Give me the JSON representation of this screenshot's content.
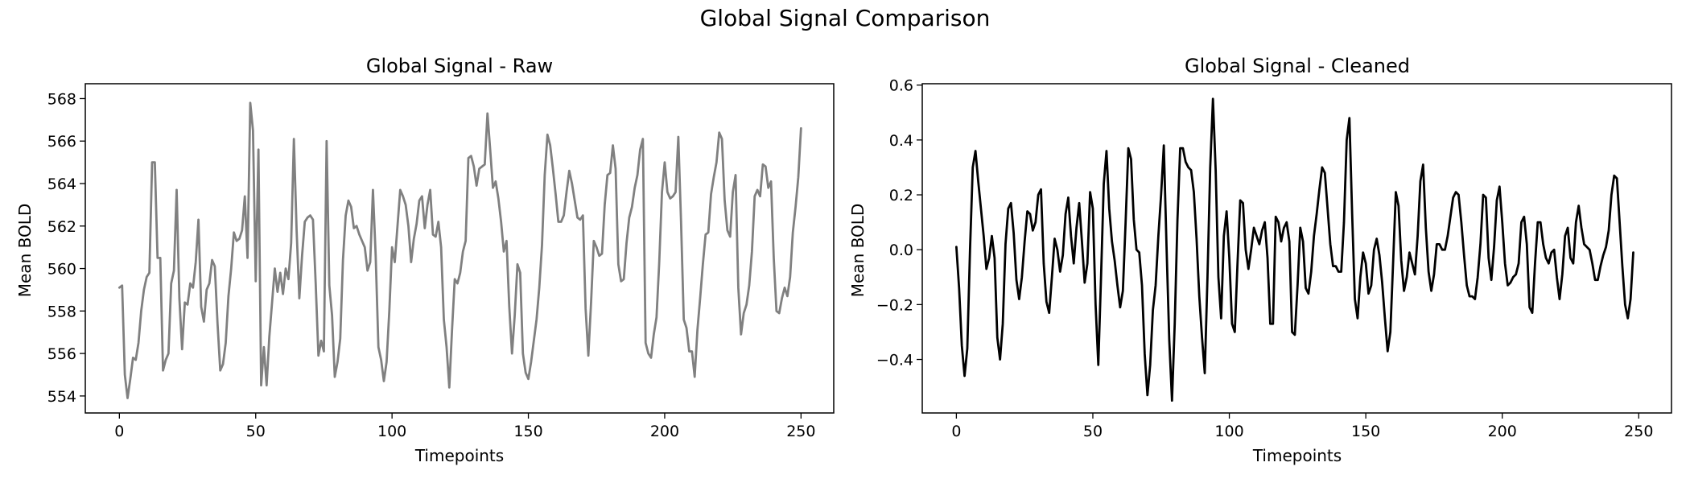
{
  "title": "Global Signal Comparison",
  "chart_data": [
    {
      "type": "line",
      "title": "Global Signal - Raw",
      "xlabel": "Timepoints",
      "ylabel": "Mean BOLD",
      "xlim": [
        -12.5,
        262
      ],
      "ylim": [
        553.2,
        568.7
      ],
      "xticks": [
        0,
        50,
        100,
        150,
        200,
        250
      ],
      "yticks": [
        554,
        556,
        558,
        560,
        562,
        564,
        566,
        568
      ],
      "ytick_labels": [
        "554",
        "556",
        "558",
        "560",
        "562",
        "564",
        "566",
        "568"
      ],
      "grid": false,
      "series": [
        {
          "color": "#808080",
          "x_start": 0,
          "x_step": 1,
          "values": [
            559.1,
            559.2,
            555.0,
            553.9,
            554.8,
            555.8,
            555.7,
            556.5,
            558.0,
            559.0,
            559.6,
            559.8,
            565.0,
            565.0,
            560.5,
            560.5,
            555.2,
            555.7,
            556.0,
            559.3,
            559.9,
            563.7,
            558.6,
            556.2,
            558.4,
            558.3,
            559.3,
            559.1,
            560.3,
            562.3,
            558.2,
            557.5,
            559.0,
            559.3,
            560.4,
            560.1,
            557.4,
            555.2,
            555.5,
            556.5,
            558.7,
            560.0,
            561.7,
            561.3,
            561.4,
            561.8,
            563.4,
            560.5,
            567.8,
            566.5,
            559.4,
            565.6,
            554.5,
            556.3,
            554.5,
            556.8,
            558.4,
            560.0,
            558.9,
            559.8,
            558.8,
            560.0,
            559.5,
            561.2,
            566.1,
            561.8,
            558.6,
            560.6,
            562.2,
            562.4,
            562.5,
            562.3,
            559.3,
            555.9,
            556.6,
            556.1,
            566.0,
            559.2,
            557.8,
            554.9,
            555.6,
            556.7,
            560.4,
            562.5,
            563.2,
            562.9,
            561.9,
            562.0,
            561.6,
            561.3,
            561.0,
            559.9,
            560.3,
            563.7,
            560.6,
            556.3,
            555.7,
            554.7,
            555.6,
            558.0,
            561.0,
            560.3,
            562.0,
            563.7,
            563.4,
            563.0,
            562.0,
            560.3,
            561.4,
            562.1,
            563.2,
            563.4,
            561.9,
            563.0,
            563.7,
            561.6,
            561.5,
            562.2,
            561.0,
            557.6,
            556.3,
            554.4,
            557.1,
            559.5,
            559.3,
            559.8,
            560.8,
            561.3,
            565.2,
            565.3,
            564.8,
            563.9,
            564.7,
            564.8,
            564.9,
            567.3,
            565.6,
            563.8,
            564.1,
            563.3,
            562.2,
            560.8,
            561.3,
            558.2,
            556.0,
            557.8,
            560.2,
            559.8,
            556.0,
            555.1,
            554.8,
            555.6,
            556.6,
            557.6,
            559.1,
            561.1,
            564.4,
            566.3,
            565.8,
            564.7,
            563.5,
            562.2,
            562.2,
            562.5,
            563.6,
            564.6,
            564.0,
            563.2,
            562.4,
            562.3,
            562.5,
            558.1,
            555.9,
            558.4,
            561.3,
            561.0,
            560.6,
            560.7,
            563.0,
            564.4,
            564.5,
            565.8,
            564.7,
            560.2,
            559.4,
            559.5,
            561.2,
            562.4,
            562.9,
            563.8,
            564.4,
            565.6,
            566.1,
            556.5,
            556.0,
            555.8,
            556.9,
            557.7,
            560.3,
            563.6,
            565.0,
            563.6,
            563.3,
            563.4,
            563.6,
            566.2,
            562.2,
            557.6,
            557.2,
            556.1,
            556.1,
            554.9,
            557.1,
            558.6,
            560.2,
            561.6,
            561.7,
            563.5,
            564.3,
            565.0,
            566.4,
            566.1,
            563.2,
            561.8,
            561.5,
            563.6,
            564.4,
            559.1,
            556.9,
            557.9,
            558.3,
            559.2,
            560.8,
            563.4,
            563.7,
            563.4,
            564.9,
            564.8,
            563.8,
            564.1,
            560.5,
            558.0,
            557.9,
            558.6,
            559.1,
            558.7,
            559.6,
            561.7,
            562.9,
            564.3,
            566.6
          ]
        }
      ]
    },
    {
      "type": "line",
      "title": "Global Signal - Cleaned",
      "xlabel": "Timepoints",
      "ylabel": "Mean BOLD",
      "xlim": [
        -12.5,
        262
      ],
      "ylim": [
        -0.595,
        0.605
      ],
      "xticks": [
        0,
        50,
        100,
        150,
        200,
        250
      ],
      "yticks": [
        -0.4,
        -0.2,
        0.0,
        0.2,
        0.4,
        0.6
      ],
      "ytick_labels": [
        "−0.4",
        "−0.2",
        "0.0",
        "0.2",
        "0.4",
        "0.6"
      ],
      "grid": false,
      "series": [
        {
          "color": "#000000",
          "x_start": 0,
          "x_step": 1,
          "values": [
            0.01,
            -0.14,
            -0.35,
            -0.46,
            -0.36,
            0.0,
            0.3,
            0.36,
            0.25,
            0.15,
            0.05,
            -0.07,
            -0.03,
            0.05,
            -0.03,
            -0.32,
            -0.4,
            -0.27,
            0.02,
            0.15,
            0.17,
            0.06,
            -0.11,
            -0.18,
            -0.1,
            0.03,
            0.14,
            0.13,
            0.07,
            0.1,
            0.2,
            0.22,
            -0.05,
            -0.19,
            -0.23,
            -0.1,
            0.04,
            0.0,
            -0.08,
            -0.02,
            0.13,
            0.19,
            0.05,
            -0.05,
            0.08,
            0.17,
            0.03,
            -0.12,
            -0.05,
            0.21,
            0.15,
            -0.2,
            -0.42,
            -0.1,
            0.24,
            0.36,
            0.15,
            0.03,
            -0.04,
            -0.13,
            -0.21,
            -0.15,
            0.1,
            0.37,
            0.33,
            0.11,
            0.0,
            -0.01,
            -0.13,
            -0.38,
            -0.53,
            -0.42,
            -0.22,
            -0.13,
            0.05,
            0.2,
            0.38,
            0.01,
            -0.33,
            -0.55,
            -0.27,
            0.11,
            0.37,
            0.37,
            0.32,
            0.3,
            0.29,
            0.21,
            0.04,
            -0.17,
            -0.32,
            -0.45,
            -0.1,
            0.3,
            0.55,
            0.29,
            -0.1,
            -0.25,
            0.05,
            0.14,
            -0.03,
            -0.27,
            -0.3,
            -0.05,
            0.18,
            0.17,
            0.0,
            -0.07,
            0.0,
            0.08,
            0.05,
            0.02,
            0.07,
            0.1,
            -0.03,
            -0.27,
            -0.27,
            0.12,
            0.1,
            0.03,
            0.08,
            0.1,
            0.03,
            -0.3,
            -0.31,
            -0.13,
            0.08,
            0.03,
            -0.14,
            -0.16,
            -0.08,
            0.05,
            0.13,
            0.22,
            0.3,
            0.28,
            0.15,
            0.02,
            -0.06,
            -0.06,
            -0.08,
            -0.08,
            0.1,
            0.4,
            0.48,
            0.13,
            -0.18,
            -0.25,
            -0.1,
            -0.01,
            -0.05,
            -0.16,
            -0.13,
            0.0,
            0.04,
            -0.02,
            -0.12,
            -0.25,
            -0.37,
            -0.3,
            -0.05,
            0.21,
            0.16,
            -0.04,
            -0.15,
            -0.1,
            -0.01,
            -0.05,
            -0.09,
            0.05,
            0.25,
            0.31,
            0.08,
            -0.08,
            -0.15,
            -0.09,
            0.02,
            0.02,
            0.0,
            0.0,
            0.05,
            0.12,
            0.19,
            0.21,
            0.2,
            0.1,
            -0.02,
            -0.13,
            -0.17,
            -0.17,
            -0.18,
            -0.1,
            0.02,
            0.2,
            0.19,
            -0.03,
            -0.11,
            0.01,
            0.18,
            0.23,
            0.1,
            -0.05,
            -0.13,
            -0.12,
            -0.1,
            -0.09,
            -0.05,
            0.1,
            0.12,
            0.02,
            -0.21,
            -0.23,
            -0.05,
            0.1,
            0.1,
            0.02,
            -0.03,
            -0.05,
            -0.01,
            0.0,
            -0.1,
            -0.18,
            -0.09,
            0.05,
            0.08,
            -0.03,
            -0.05,
            0.1,
            0.16,
            0.08,
            0.02,
            0.01,
            0.0,
            -0.05,
            -0.11,
            -0.11,
            -0.06,
            -0.02,
            0.01,
            0.07,
            0.2,
            0.27,
            0.26,
            0.1,
            -0.06,
            -0.2,
            -0.25,
            -0.18,
            -0.01
          ]
        }
      ]
    }
  ]
}
